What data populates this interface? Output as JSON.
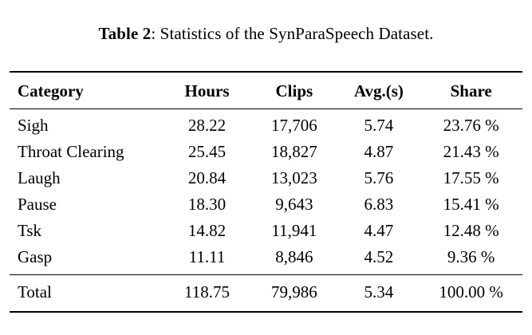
{
  "caption": {
    "label": "Table 2",
    "text": ": Statistics of the SynParaSpeech Dataset."
  },
  "table": {
    "headers": {
      "category": "Category",
      "hours": "Hours",
      "clips": "Clips",
      "avg": "Avg.(s)",
      "share": "Share"
    },
    "rows": [
      {
        "category": "Sigh",
        "hours": "28.22",
        "clips": "17,706",
        "avg": "5.74",
        "share": "23.76 %"
      },
      {
        "category": "Throat Clearing",
        "hours": "25.45",
        "clips": "18,827",
        "avg": "4.87",
        "share": "21.43 %"
      },
      {
        "category": "Laugh",
        "hours": "20.84",
        "clips": "13,023",
        "avg": "5.76",
        "share": "17.55 %"
      },
      {
        "category": "Pause",
        "hours": "18.30",
        "clips": "9,643",
        "avg": "6.83",
        "share": "15.41 %"
      },
      {
        "category": "Tsk",
        "hours": "14.82",
        "clips": "11,941",
        "avg": "4.47",
        "share": "12.48 %"
      },
      {
        "category": "Gasp",
        "hours": "11.11",
        "clips": "8,846",
        "avg": "4.52",
        "share": "9.36 %"
      }
    ],
    "total": {
      "category": "Total",
      "hours": "118.75",
      "clips": "79,986",
      "avg": "5.34",
      "share": "100.00 %"
    }
  }
}
